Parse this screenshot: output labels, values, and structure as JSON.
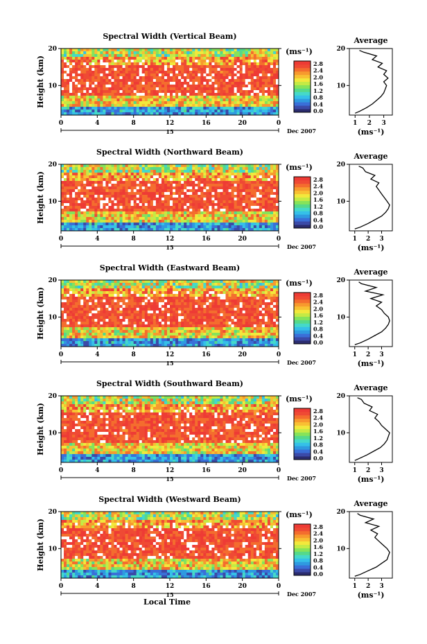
{
  "chart_data": [
    {
      "type": "heatmap",
      "title": "Spectral Width (Vertical Beam)",
      "ylabel": "Height (km)",
      "xticks": [
        "0",
        "4",
        "8",
        "12",
        "16",
        "20",
        "0"
      ],
      "yticks": [
        "20",
        "10"
      ],
      "xlim": [
        0,
        24
      ],
      "ylim": [
        2,
        20
      ],
      "date_day": "15",
      "date_label": "Dec 2007",
      "colorbar": {
        "unit": "(ms⁻¹)",
        "ticks": [
          "2.8",
          "2.4",
          "2.0",
          "1.6",
          "1.2",
          "0.8",
          "0.4",
          "0.0"
        ]
      },
      "profile": {
        "title": "Average",
        "xlabel": "(ms⁻¹)",
        "xticks": [
          "1",
          "2",
          "3"
        ],
        "yticks": [
          "20",
          "10"
        ],
        "xlim": [
          0.6,
          3.6
        ],
        "height": [
          2.5,
          3,
          4,
          5,
          6,
          7,
          8,
          9,
          10,
          11,
          12,
          13,
          14,
          15,
          16,
          17,
          18,
          19,
          19.5
        ],
        "values": [
          1.0,
          1.3,
          1.8,
          2.2,
          2.5,
          2.8,
          3.0,
          3.1,
          3.2,
          3.0,
          3.3,
          3.0,
          3.2,
          2.6,
          2.9,
          2.2,
          2.5,
          1.6,
          1.3
        ]
      }
    },
    {
      "type": "heatmap",
      "title": "Spectral Width (Northward Beam)",
      "ylabel": "Height (km)",
      "xticks": [
        "0",
        "4",
        "8",
        "12",
        "16",
        "20",
        "0"
      ],
      "yticks": [
        "20",
        "10"
      ],
      "xlim": [
        0,
        24
      ],
      "ylim": [
        2,
        20
      ],
      "date_day": "15",
      "date_label": "Dec 2007",
      "colorbar": {
        "unit": "(ms⁻¹)",
        "ticks": [
          "2.8",
          "2.4",
          "2.0",
          "1.6",
          "1.2",
          "0.8",
          "0.4",
          "0.0"
        ]
      },
      "profile": {
        "title": "Average",
        "xlabel": "(ms⁻¹)",
        "xticks": [
          "1",
          "2",
          "3"
        ],
        "yticks": [
          "20",
          "10"
        ],
        "xlim": [
          0.6,
          3.8
        ],
        "height": [
          2.5,
          3,
          4,
          5,
          6,
          7,
          8,
          9,
          10,
          11,
          12,
          13,
          14,
          15,
          16,
          17,
          18,
          19,
          19.5
        ],
        "values": [
          1.0,
          1.4,
          2.0,
          2.5,
          3.0,
          3.3,
          3.5,
          3.6,
          3.4,
          3.2,
          3.0,
          2.8,
          2.6,
          2.8,
          2.2,
          2.5,
          1.8,
          1.6,
          1.3
        ]
      }
    },
    {
      "type": "heatmap",
      "title": "Spectral Width (Eastward Beam)",
      "ylabel": "Height (km)",
      "xticks": [
        "0",
        "4",
        "8",
        "12",
        "16",
        "20",
        "0"
      ],
      "yticks": [
        "20",
        "10"
      ],
      "xlim": [
        0,
        24
      ],
      "ylim": [
        2,
        20
      ],
      "date_day": "15",
      "date_label": "Dec 2007",
      "colorbar": {
        "unit": "(ms⁻¹)",
        "ticks": [
          "2.8",
          "2.4",
          "2.0",
          "1.6",
          "1.2",
          "0.8",
          "0.4",
          "0.0"
        ]
      },
      "profile": {
        "title": "Average",
        "xlabel": "(ms⁻¹)",
        "xticks": [
          "1",
          "2",
          "3"
        ],
        "yticks": [
          "20",
          "10"
        ],
        "xlim": [
          0.6,
          3.8
        ],
        "height": [
          2.5,
          3,
          4,
          5,
          6,
          7,
          8,
          9,
          10,
          11,
          12,
          13,
          14,
          15,
          16,
          17,
          18,
          19,
          19.5
        ],
        "values": [
          1.0,
          1.4,
          2.0,
          2.5,
          3.0,
          3.3,
          3.5,
          3.6,
          3.5,
          3.2,
          3.0,
          2.6,
          3.0,
          2.2,
          3.1,
          1.8,
          2.6,
          1.5,
          1.3
        ]
      }
    },
    {
      "type": "heatmap",
      "title": "Spectral Width (Southward Beam)",
      "ylabel": "Height (km)",
      "xticks": [
        "0",
        "4",
        "8",
        "12",
        "16",
        "20",
        "0"
      ],
      "yticks": [
        "20",
        "10"
      ],
      "xlim": [
        0,
        24
      ],
      "ylim": [
        2,
        20
      ],
      "date_day": "15",
      "date_label": "Dec 2007",
      "colorbar": {
        "unit": "(ms⁻¹)",
        "ticks": [
          "2.8",
          "2.4",
          "2.0",
          "1.6",
          "1.2",
          "0.8",
          "0.4",
          "0.0"
        ]
      },
      "profile": {
        "title": "Average",
        "xlabel": "(ms⁻¹)",
        "xticks": [
          "1",
          "2",
          "3"
        ],
        "yticks": [
          "20",
          "10"
        ],
        "xlim": [
          0.6,
          3.8
        ],
        "height": [
          2.5,
          3,
          4,
          5,
          6,
          7,
          8,
          9,
          10,
          11,
          12,
          13,
          14,
          15,
          16,
          17,
          18,
          19,
          19.5
        ],
        "values": [
          1.0,
          1.3,
          1.9,
          2.4,
          2.9,
          3.2,
          3.4,
          3.5,
          3.6,
          3.3,
          3.0,
          2.8,
          2.5,
          2.7,
          2.1,
          2.3,
          1.7,
          1.5,
          1.2
        ]
      }
    },
    {
      "type": "heatmap",
      "title": "Spectral Width (Westward Beam)",
      "ylabel": "Height (km)",
      "xlabel": "Local Time",
      "xticks": [
        "0",
        "4",
        "8",
        "12",
        "16",
        "20",
        "0"
      ],
      "yticks": [
        "20",
        "10"
      ],
      "xlim": [
        0,
        24
      ],
      "ylim": [
        2,
        20
      ],
      "date_day": "15",
      "date_label": "Dec 2007",
      "colorbar": {
        "unit": "(ms⁻¹)",
        "ticks": [
          "2.8",
          "2.4",
          "2.0",
          "1.6",
          "1.2",
          "0.8",
          "0.4",
          "0.0"
        ]
      },
      "profile": {
        "title": "Average",
        "xlabel": "(ms⁻¹)",
        "xticks": [
          "1",
          "2",
          "3"
        ],
        "yticks": [
          "20",
          "10"
        ],
        "xlim": [
          0.6,
          3.8
        ],
        "height": [
          2.5,
          3,
          4,
          5,
          6,
          7,
          8,
          9,
          10,
          11,
          12,
          13,
          14,
          15,
          16,
          17,
          18,
          19,
          19.5
        ],
        "values": [
          1.0,
          1.4,
          2.0,
          2.6,
          3.0,
          3.4,
          3.5,
          3.6,
          3.4,
          3.1,
          2.8,
          2.5,
          2.7,
          2.2,
          2.8,
          1.8,
          2.4,
          1.4,
          1.2
        ]
      }
    }
  ]
}
